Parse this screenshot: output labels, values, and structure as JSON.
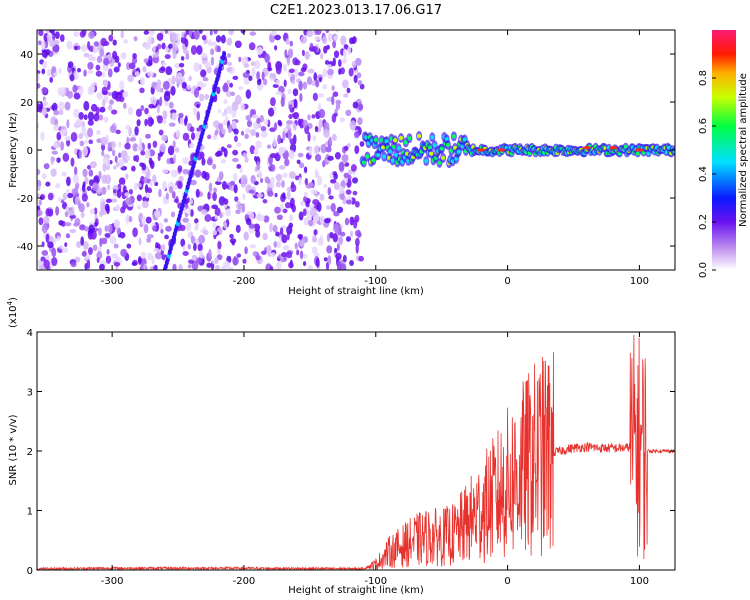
{
  "title": "C2E1.2023.013.17.06.G17",
  "colors": {
    "snr_line": "#e8312c",
    "axis": "#000000"
  },
  "chart_data": [
    {
      "type": "heatmap",
      "xlabel": "Height of straight line (km)",
      "ylabel": "Frequency (Hz)",
      "xlim": [
        -357,
        127
      ],
      "ylim": [
        -50,
        50
      ],
      "x_ticks": [
        -300,
        -200,
        -100,
        0,
        100
      ],
      "y_ticks": [
        -40,
        -20,
        0,
        20,
        40
      ],
      "colorbar": {
        "label": "Normalized spectral amplitude",
        "range": [
          0,
          1
        ],
        "ticks": [
          "0.0",
          "0.2",
          "0.4",
          "0.6",
          "0.8"
        ],
        "colormap": "rainbow (white-violet-blue-cyan-green-yellow-red-magenta)"
      },
      "features": {
        "noise_region_x": [
          -357,
          -110
        ],
        "signal_track_x": [
          -110,
          127
        ],
        "signal_track_freq": 0,
        "diagonal_streak": {
          "x": [
            -260,
            -215
          ],
          "freq": [
            -50,
            40
          ]
        }
      }
    },
    {
      "type": "line",
      "xlabel": "Height of straight line (km)",
      "ylabel": "SNR (10 * v/v)",
      "yscale_label": "(x10",
      "yscale_exp": "4",
      "yscale_close": ")",
      "xlim": [
        -357,
        127
      ],
      "ylim": [
        0,
        4
      ],
      "x_ticks": [
        -300,
        -200,
        -100,
        0,
        100
      ],
      "y_ticks": [
        0,
        1,
        2,
        3,
        4
      ],
      "series": [
        {
          "x": [
            -357,
            -300,
            -200,
            -110,
            -100,
            -90,
            -80,
            -70,
            -60,
            -50,
            -40,
            -30,
            -20,
            -10,
            0,
            10,
            20,
            30,
            40,
            50,
            60,
            70,
            80,
            90,
            95,
            100,
            105,
            110,
            127
          ],
          "y": [
            0.02,
            0.03,
            0.03,
            0.02,
            0.1,
            0.3,
            0.4,
            0.5,
            0.55,
            0.55,
            0.6,
            0.8,
            1.0,
            1.2,
            1.45,
            1.65,
            1.85,
            1.95,
            2.0,
            2.05,
            2.07,
            2.05,
            2.05,
            2.05,
            2.1,
            2.1,
            2.0,
            2.0,
            2.0
          ]
        }
      ]
    }
  ]
}
